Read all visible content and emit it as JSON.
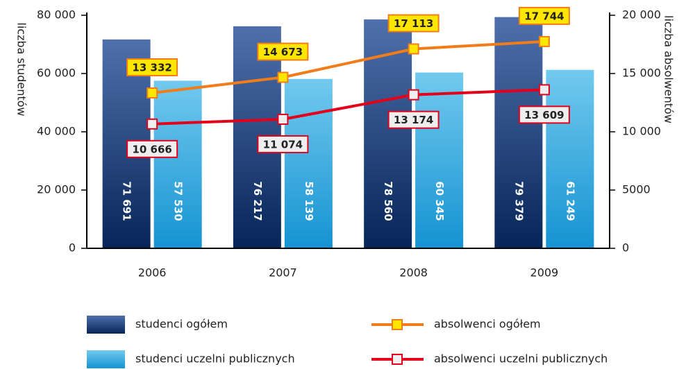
{
  "chart_data": {
    "type": "bar-line",
    "ylabel": "liczba studentów",
    "y2label": "liczba absolwentów",
    "categories": [
      "2006",
      "2007",
      "2008",
      "2009"
    ],
    "ylim": [
      0,
      80000
    ],
    "yticks": [
      0,
      {
        "value": 20000,
        "label": "20 000"
      },
      {
        "value": 40000,
        "label": "40 000"
      },
      {
        "value": 60000,
        "label": "60 000"
      },
      {
        "value": 80000,
        "label": "80 000"
      }
    ],
    "y2lim": [
      0,
      20000
    ],
    "y2ticks": [
      0,
      5000,
      {
        "value": 10000,
        "label": "10 000"
      },
      {
        "value": 15000,
        "label": "15 000"
      },
      {
        "value": 20000,
        "label": "20 000"
      }
    ],
    "series": [
      {
        "name": "studenci ogółem",
        "type": "bar",
        "color": "#1f3f7a",
        "values": [
          71691,
          76217,
          78560,
          79379
        ],
        "value_labels": [
          "71 691",
          "76 217",
          "78 560",
          "79 379"
        ]
      },
      {
        "name": "studenci uczelni publicznych",
        "type": "bar",
        "color": "#2aa7de",
        "values": [
          57530,
          58139,
          60345,
          61249
        ],
        "value_labels": [
          "57 530",
          "58 139",
          "60 345",
          "61 249"
        ]
      },
      {
        "name": "absolwenci ogółem",
        "type": "line",
        "axis": "y2",
        "color": "#f07c1a",
        "values": [
          13332,
          14673,
          17113,
          17744
        ],
        "value_labels": [
          "13 332",
          "14 673",
          "17 113",
          "17 744"
        ]
      },
      {
        "name": "absolwenci uczelni publicznych",
        "type": "line",
        "axis": "y2",
        "color": "#e3001b",
        "values": [
          10666,
          11074,
          13174,
          13609
        ],
        "value_labels": [
          "10 666",
          "11 074",
          "13 174",
          "13 609"
        ]
      }
    ]
  }
}
